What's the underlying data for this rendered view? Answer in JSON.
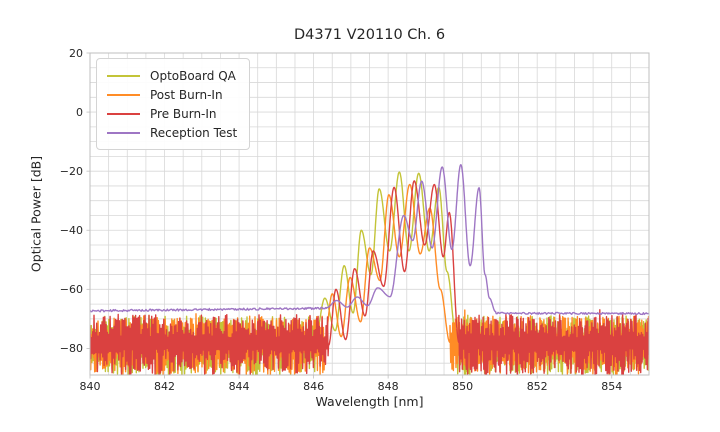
{
  "chart_data": {
    "type": "line",
    "title": "D4371 V20110 Ch. 6",
    "xlabel": "Wavelength [nm]",
    "ylabel": "Optical Power [dB]",
    "xlim": [
      840,
      855
    ],
    "ylim": [
      -89,
      20
    ],
    "xticks": [
      840,
      842,
      844,
      846,
      848,
      850,
      852,
      854
    ],
    "yticks": [
      20,
      0,
      -20,
      -40,
      -60,
      -80
    ],
    "minor_grid_x_step": 0.5,
    "minor_grid_y_step": 5,
    "grid": true,
    "grid_color": "#d8d8d8",
    "spine_color": "#bfbfbf",
    "legend_position": "upper left",
    "series": [
      {
        "name": "OptoBoard QA",
        "color": "#c3c438",
        "style": "comb",
        "noise": {
          "left_end": 846.08,
          "right_start": 849.85,
          "top_min": -77,
          "top_max": -69,
          "bottom_min": -89,
          "bottom_max": -81,
          "seed": 11
        },
        "envelope": [
          [
            846.08,
            -74
          ],
          [
            846.3,
            -63
          ],
          [
            846.58,
            -74
          ],
          [
            846.82,
            -52
          ],
          [
            847.06,
            -68
          ],
          [
            847.28,
            -40
          ],
          [
            847.54,
            -55
          ],
          [
            847.76,
            -26
          ],
          [
            848.04,
            -47
          ],
          [
            848.3,
            -20.3
          ],
          [
            848.56,
            -47
          ],
          [
            848.82,
            -20.7
          ],
          [
            849.1,
            -47
          ],
          [
            849.36,
            -25.5
          ],
          [
            849.58,
            -54
          ],
          [
            849.85,
            -79
          ]
        ]
      },
      {
        "name": "Post Burn-In",
        "color": "#ff8c26",
        "style": "comb",
        "noise": {
          "left_end": 846.3,
          "right_start": 849.66,
          "top_min": -77,
          "top_max": -69,
          "bottom_min": -89,
          "bottom_max": -81,
          "seed": 22
        },
        "envelope": [
          [
            846.3,
            -77
          ],
          [
            846.5,
            -61.5
          ],
          [
            846.74,
            -76
          ],
          [
            846.98,
            -56
          ],
          [
            847.26,
            -71
          ],
          [
            847.5,
            -46
          ],
          [
            847.78,
            -57
          ],
          [
            848.02,
            -28
          ],
          [
            848.3,
            -49
          ],
          [
            848.58,
            -24.5
          ],
          [
            848.86,
            -48
          ],
          [
            849.12,
            -32.5
          ],
          [
            849.4,
            -60
          ],
          [
            849.66,
            -78
          ]
        ]
      },
      {
        "name": "Pre Burn-In",
        "color": "#da4140",
        "style": "comb",
        "noise": {
          "left_end": 846.4,
          "right_start": 849.9,
          "top_min": -76.5,
          "top_max": -68.5,
          "bottom_min": -89,
          "bottom_max": -80,
          "seed": 33
        },
        "envelope": [
          [
            846.4,
            -79
          ],
          [
            846.6,
            -60
          ],
          [
            846.86,
            -77
          ],
          [
            847.1,
            -53
          ],
          [
            847.38,
            -69
          ],
          [
            847.6,
            -47
          ],
          [
            847.88,
            -59
          ],
          [
            848.16,
            -25.5
          ],
          [
            848.44,
            -54
          ],
          [
            848.7,
            -23.3
          ],
          [
            848.98,
            -45
          ],
          [
            849.24,
            -24.5
          ],
          [
            849.48,
            -49
          ],
          [
            849.64,
            -34
          ],
          [
            849.9,
            -78
          ]
        ]
      },
      {
        "name": "Reception Test",
        "color": "#9e76c4",
        "style": "smooth",
        "seed": 44,
        "baseline_left": {
          "from": 840.0,
          "to": 846.35,
          "level_start": -67.3,
          "level_end": -66.4,
          "jitter": 0.35
        },
        "baseline_right": {
          "from": 850.9,
          "to": 855.0,
          "level_start": -68.1,
          "level_end": -68.2,
          "jitter": 0.3
        },
        "envelope": [
          [
            846.35,
            -66.2
          ],
          [
            846.62,
            -63.8
          ],
          [
            846.9,
            -66.0
          ],
          [
            847.17,
            -62.6
          ],
          [
            847.45,
            -65.5
          ],
          [
            847.72,
            -59.5
          ],
          [
            848.05,
            -62.5
          ],
          [
            848.42,
            -35.0
          ],
          [
            848.66,
            -43.5
          ],
          [
            848.9,
            -23.4
          ],
          [
            849.18,
            -46.0
          ],
          [
            849.45,
            -18.6
          ],
          [
            849.71,
            -46.5
          ],
          [
            849.95,
            -17.8
          ],
          [
            850.2,
            -52.0
          ],
          [
            850.44,
            -25.6
          ],
          [
            850.6,
            -55.0
          ],
          [
            850.72,
            -63.0
          ],
          [
            850.88,
            -67.5
          ]
        ]
      }
    ]
  }
}
